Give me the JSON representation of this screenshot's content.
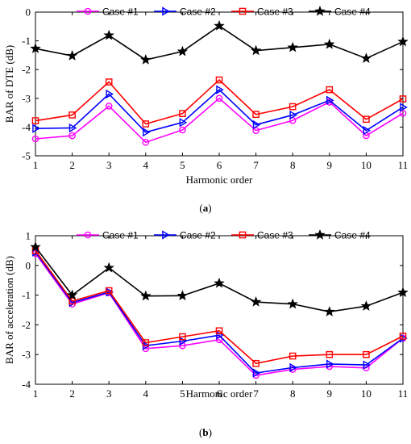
{
  "chart_data": [
    {
      "type": "line",
      "panel_label": "(a)",
      "xlabel": "Harmonic order",
      "ylabel": "BAR of DTE (dB)",
      "x": [
        1,
        2,
        3,
        4,
        5,
        6,
        7,
        8,
        9,
        10,
        11
      ],
      "xlim": [
        1,
        11
      ],
      "ylim": [
        -5,
        0
      ],
      "xticks": [
        "1",
        "2",
        "3",
        "4",
        "5",
        "6",
        "7",
        "8",
        "9",
        "10",
        "11"
      ],
      "yticks": [
        "-5",
        "-4",
        "-3",
        "-2",
        "-1",
        "0"
      ],
      "grid": false,
      "legend_position": "top",
      "series": [
        {
          "name": "Case #1",
          "marker": "circle",
          "color": "#ff00ff",
          "values": [
            -4.41,
            -4.3,
            -3.27,
            -4.53,
            -4.1,
            -3.0,
            -4.12,
            -3.77,
            -3.13,
            -4.3,
            -3.52
          ]
        },
        {
          "name": "Case #2",
          "marker": "triangle-right",
          "color": "#0000ff",
          "values": [
            -4.05,
            -4.03,
            -2.85,
            -4.18,
            -3.84,
            -2.7,
            -3.92,
            -3.58,
            -3.07,
            -4.12,
            -3.31
          ]
        },
        {
          "name": "Case #3",
          "marker": "square",
          "color": "#ff0000",
          "values": [
            -3.78,
            -3.58,
            -2.43,
            -3.89,
            -3.53,
            -2.36,
            -3.56,
            -3.29,
            -2.7,
            -3.73,
            -3.02
          ]
        },
        {
          "name": "Case #4",
          "marker": "star",
          "color": "#000000",
          "values": [
            -1.27,
            -1.52,
            -0.81,
            -1.66,
            -1.37,
            -0.48,
            -1.34,
            -1.23,
            -1.12,
            -1.61,
            -1.03
          ]
        }
      ]
    },
    {
      "type": "line",
      "panel_label": "(b)",
      "xlabel": "Harmonic order",
      "ylabel": "BAR of acceleration (dB)",
      "x": [
        1,
        2,
        3,
        4,
        5,
        6,
        7,
        8,
        9,
        10,
        11
      ],
      "xlim": [
        1,
        11
      ],
      "ylim": [
        -4,
        1
      ],
      "xticks": [
        "1",
        "2",
        "3",
        "4",
        "5",
        "6",
        "7",
        "8",
        "9",
        "10",
        "11"
      ],
      "yticks": [
        "-4",
        "-3",
        "-2",
        "-1",
        "0",
        "1"
      ],
      "grid": false,
      "legend_position": "top",
      "series": [
        {
          "name": "Case #1",
          "marker": "circle",
          "color": "#ff00ff",
          "values": [
            0.4,
            -1.3,
            -0.92,
            -2.8,
            -2.7,
            -2.5,
            -3.7,
            -3.5,
            -3.4,
            -3.45,
            -2.45
          ]
        },
        {
          "name": "Case #2",
          "marker": "triangle-right",
          "color": "#0000ff",
          "values": [
            0.45,
            -1.25,
            -0.9,
            -2.7,
            -2.55,
            -2.35,
            -3.62,
            -3.44,
            -3.32,
            -3.35,
            -2.45
          ]
        },
        {
          "name": "Case #3",
          "marker": "square",
          "color": "#ff0000",
          "values": [
            0.5,
            -1.2,
            -0.85,
            -2.6,
            -2.4,
            -2.2,
            -3.3,
            -3.05,
            -3.0,
            -3.0,
            -2.38
          ]
        },
        {
          "name": "Case #4",
          "marker": "star",
          "color": "#000000",
          "values": [
            0.62,
            -1.0,
            -0.08,
            -1.03,
            -1.02,
            -0.6,
            -1.23,
            -1.3,
            -1.56,
            -1.37,
            -0.91
          ]
        }
      ]
    }
  ]
}
